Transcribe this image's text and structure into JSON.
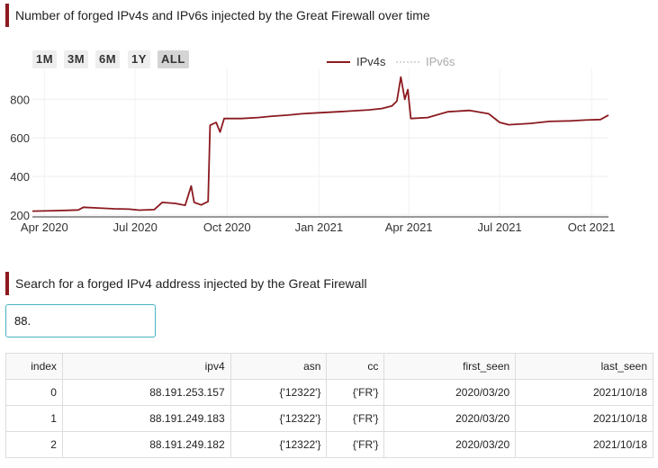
{
  "chart_section": {
    "title": "Number of forged IPv4s and IPv6s injected by the Great Firewall over time",
    "range_buttons": [
      {
        "label": "1M",
        "active": false
      },
      {
        "label": "3M",
        "active": false
      },
      {
        "label": "6M",
        "active": false
      },
      {
        "label": "1Y",
        "active": false
      },
      {
        "label": "ALL",
        "active": true
      }
    ]
  },
  "chart_data": {
    "type": "line",
    "title": "",
    "xlabel": "",
    "ylabel": "",
    "x_range": [
      "2020-03-20",
      "2021-10-18"
    ],
    "ylim": [
      190,
      960
    ],
    "x_ticks": [
      {
        "label": "Apr 2020",
        "date": "2020-04-01"
      },
      {
        "label": "Jul 2020",
        "date": "2020-07-01"
      },
      {
        "label": "Oct 2020",
        "date": "2020-10-01"
      },
      {
        "label": "Jan 2021",
        "date": "2021-01-01"
      },
      {
        "label": "Apr 2021",
        "date": "2021-04-01"
      },
      {
        "label": "Jul 2021",
        "date": "2021-07-01"
      },
      {
        "label": "Oct 2021",
        "date": "2021-10-01"
      }
    ],
    "y_ticks": [
      200,
      400,
      600,
      800
    ],
    "grid": true,
    "legend_position": "top-right",
    "series": [
      {
        "name": "IPv4s",
        "color": "#8b1a1f",
        "visible": true,
        "points": [
          [
            "2020-03-20",
            220
          ],
          [
            "2020-04-10",
            222
          ],
          [
            "2020-04-25",
            224
          ],
          [
            "2020-05-05",
            226
          ],
          [
            "2020-05-10",
            240
          ],
          [
            "2020-05-25",
            236
          ],
          [
            "2020-06-10",
            232
          ],
          [
            "2020-06-25",
            230
          ],
          [
            "2020-07-05",
            225
          ],
          [
            "2020-07-20",
            228
          ],
          [
            "2020-07-28",
            265
          ],
          [
            "2020-08-10",
            260
          ],
          [
            "2020-08-20",
            250
          ],
          [
            "2020-08-26",
            350
          ],
          [
            "2020-08-29",
            265
          ],
          [
            "2020-09-05",
            252
          ],
          [
            "2020-09-12",
            270
          ],
          [
            "2020-09-14",
            665
          ],
          [
            "2020-09-20",
            680
          ],
          [
            "2020-09-24",
            630
          ],
          [
            "2020-09-28",
            700
          ],
          [
            "2020-10-15",
            700
          ],
          [
            "2020-11-01",
            705
          ],
          [
            "2020-11-15",
            712
          ],
          [
            "2020-12-01",
            718
          ],
          [
            "2020-12-15",
            725
          ],
          [
            "2021-01-01",
            730
          ],
          [
            "2021-01-20",
            735
          ],
          [
            "2021-02-05",
            740
          ],
          [
            "2021-02-20",
            745
          ],
          [
            "2021-03-05",
            752
          ],
          [
            "2021-03-15",
            765
          ],
          [
            "2021-03-20",
            790
          ],
          [
            "2021-03-24",
            915
          ],
          [
            "2021-03-28",
            800
          ],
          [
            "2021-03-31",
            850
          ],
          [
            "2021-04-03",
            700
          ],
          [
            "2021-04-20",
            705
          ],
          [
            "2021-05-10",
            735
          ],
          [
            "2021-06-01",
            742
          ],
          [
            "2021-06-20",
            725
          ],
          [
            "2021-07-01",
            680
          ],
          [
            "2021-07-10",
            668
          ],
          [
            "2021-08-01",
            675
          ],
          [
            "2021-08-20",
            685
          ],
          [
            "2021-09-10",
            688
          ],
          [
            "2021-09-25",
            692
          ],
          [
            "2021-10-10",
            695
          ],
          [
            "2021-10-18",
            718
          ]
        ]
      },
      {
        "name": "IPv6s",
        "color": "#bbbbbb",
        "visible": false,
        "points": []
      }
    ]
  },
  "search_section": {
    "title": "Search for a forged IPv4 address injected by the Great Firewall",
    "input_value": "88."
  },
  "table": {
    "columns": [
      "index",
      "ipv4",
      "asn",
      "cc",
      "first_seen",
      "last_seen"
    ],
    "rows": [
      [
        "0",
        "88.191.253.157",
        "{'12322'}",
        "{'FR'}",
        "2020/03/20",
        "2021/10/18"
      ],
      [
        "1",
        "88.191.249.183",
        "{'12322'}",
        "{'FR'}",
        "2020/03/20",
        "2021/10/18"
      ],
      [
        "2",
        "88.191.249.182",
        "{'12322'}",
        "{'FR'}",
        "2020/03/20",
        "2021/10/18"
      ]
    ]
  }
}
